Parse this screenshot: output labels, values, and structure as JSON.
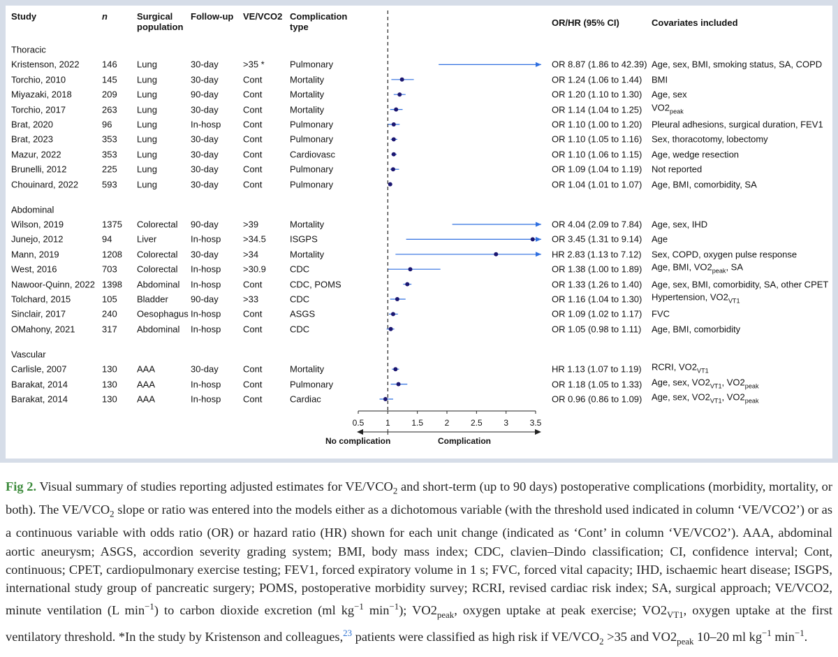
{
  "chart_data": {
    "type": "forest",
    "columns": {
      "study": "Study",
      "n": "n",
      "population": "Surgical population",
      "followup": "Follow-up",
      "ve_vco2": "VE/VCO2",
      "complication": "Complication type",
      "estimate": "OR/HR (95% CI)",
      "covariates": "Covariates included"
    },
    "groups": [
      {
        "name": "Thoracic",
        "rows": [
          {
            "study": "Kristenson, 2022",
            "n": 146,
            "population": "Lung",
            "followup": "30-day",
            "ve_vco2": ">35 *",
            "complication": "Pulmonary",
            "estimate": 8.87,
            "lower": 1.86,
            "upper": 42.39,
            "label": "OR 8.87 (1.86 to 42.39)",
            "covariates": "Age, sex, BMI, smoking status, SA, COPD"
          },
          {
            "study": "Torchio, 2010",
            "n": 145,
            "population": "Lung",
            "followup": "30-day",
            "ve_vco2": "Cont",
            "complication": "Mortality",
            "estimate": 1.24,
            "lower": 1.06,
            "upper": 1.44,
            "label": "OR 1.24 (1.06 to 1.44)",
            "covariates": "BMI"
          },
          {
            "study": "Miyazaki, 2018",
            "n": 209,
            "population": "Lung",
            "followup": "90-day",
            "ve_vco2": "Cont",
            "complication": "Mortality",
            "estimate": 1.2,
            "lower": 1.1,
            "upper": 1.3,
            "label": "OR 1.20 (1.10 to 1.30)",
            "covariates": "Age, sex"
          },
          {
            "study": "Torchio, 2017",
            "n": 263,
            "population": "Lung",
            "followup": "30-day",
            "ve_vco2": "Cont",
            "complication": "Mortality",
            "estimate": 1.14,
            "lower": 1.04,
            "upper": 1.25,
            "label": "OR 1.14 (1.04 to 1.25)",
            "covariates": [
              "VO2",
              {
                "sub": "peak"
              }
            ]
          },
          {
            "study": "Brat, 2020",
            "n": 96,
            "population": "Lung",
            "followup": "In-hosp",
            "ve_vco2": "Cont",
            "complication": "Pulmonary",
            "estimate": 1.1,
            "lower": 1.0,
            "upper": 1.2,
            "label": "OR 1.10 (1.00 to 1.20)",
            "covariates": "Pleural adhesions, surgical duration, FEV1"
          },
          {
            "study": "Brat, 2023",
            "n": 353,
            "population": "Lung",
            "followup": "30-day",
            "ve_vco2": "Cont",
            "complication": "Pulmonary",
            "estimate": 1.1,
            "lower": 1.05,
            "upper": 1.16,
            "label": "OR 1.10 (1.05 to 1.16)",
            "covariates": "Sex, thoracotomy, lobectomy"
          },
          {
            "study": "Mazur, 2022",
            "n": 353,
            "population": "Lung",
            "followup": "30-day",
            "ve_vco2": "Cont",
            "complication": "Cardiovasc",
            "estimate": 1.1,
            "lower": 1.06,
            "upper": 1.15,
            "label": "OR 1.10 (1.06 to 1.15)",
            "covariates": "Age, wedge resection"
          },
          {
            "study": "Brunelli, 2012",
            "n": 225,
            "population": "Lung",
            "followup": "30-day",
            "ve_vco2": "Cont",
            "complication": "Pulmonary",
            "estimate": 1.09,
            "lower": 1.04,
            "upper": 1.19,
            "label": "OR 1.09 (1.04 to 1.19)",
            "covariates": "Not reported"
          },
          {
            "study": "Chouinard, 2022",
            "n": 593,
            "population": "Lung",
            "followup": "30-day",
            "ve_vco2": "Cont",
            "complication": "Pulmonary",
            "estimate": 1.04,
            "lower": 1.01,
            "upper": 1.07,
            "label": "OR 1.04 (1.01 to 1.07)",
            "covariates": "Age, BMI, comorbidity, SA"
          }
        ]
      },
      {
        "name": "Abdominal",
        "rows": [
          {
            "study": "Wilson, 2019",
            "n": 1375,
            "population": "Colorectal",
            "followup": "90-day",
            "ve_vco2": ">39",
            "complication": "Mortality",
            "estimate": 4.04,
            "lower": 2.09,
            "upper": 7.84,
            "label": "OR 4.04 (2.09 to 7.84)",
            "covariates": "Age, sex, IHD"
          },
          {
            "study": "Junejo, 2012",
            "n": 94,
            "population": "Liver",
            "followup": "In-hosp",
            "ve_vco2": ">34.5",
            "complication": "ISGPS",
            "estimate": 3.45,
            "lower": 1.31,
            "upper": 9.14,
            "label": "OR 3.45 (1.31 to 9.14)",
            "covariates": "Age"
          },
          {
            "study": "Mann, 2019",
            "n": 1208,
            "population": "Colorectal",
            "followup": "30-day",
            "ve_vco2": ">34",
            "complication": "Mortality",
            "estimate": 2.83,
            "lower": 1.13,
            "upper": 7.12,
            "label": "HR 2.83 (1.13 to 7.12)",
            "covariates": "Sex, COPD, oxygen pulse response"
          },
          {
            "study": "West, 2016",
            "n": 703,
            "population": "Colorectal",
            "followup": "In-hosp",
            "ve_vco2": ">30.9",
            "complication": "CDC",
            "estimate": 1.38,
            "lower": 1.0,
            "upper": 1.89,
            "label": "OR 1.38 (1.00 to 1.89)",
            "covariates": [
              "Age, BMI, VO2",
              {
                "sub": "peak"
              },
              ", SA"
            ]
          },
          {
            "study": "Nawoor-Quinn, 2022",
            "n": 1398,
            "population": "Abdominal",
            "followup": "In-hosp",
            "ve_vco2": "Cont",
            "complication": "CDC, POMS",
            "estimate": 1.33,
            "lower": 1.26,
            "upper": 1.4,
            "label": "OR 1.33 (1.26 to 1.40)",
            "covariates": "Age, sex, BMI, comorbidity, SA, other CPET"
          },
          {
            "study": "Tolchard, 2015",
            "n": 105,
            "population": "Bladder",
            "followup": "90-day",
            "ve_vco2": ">33",
            "complication": "CDC",
            "estimate": 1.16,
            "lower": 1.04,
            "upper": 1.3,
            "label": "OR 1.16 (1.04 to 1.30)",
            "covariates": [
              "Hypertension, VO2",
              {
                "sub": "VT1"
              }
            ]
          },
          {
            "study": "Sinclair, 2017",
            "n": 240,
            "population": "Oesophagus",
            "followup": "In-hosp",
            "ve_vco2": "Cont",
            "complication": "ASGS",
            "estimate": 1.09,
            "lower": 1.02,
            "upper": 1.17,
            "label": "OR 1.09 (1.02 to 1.17)",
            "covariates": "FVC"
          },
          {
            "study": "OMahony, 2021",
            "n": 317,
            "population": "Abdominal",
            "followup": "In-hosp",
            "ve_vco2": "Cont",
            "complication": "CDC",
            "estimate": 1.05,
            "lower": 0.98,
            "upper": 1.11,
            "label": "OR 1.05 (0.98 to 1.11)",
            "covariates": "Age, BMI, comorbidity"
          }
        ]
      },
      {
        "name": "Vascular",
        "rows": [
          {
            "study": "Carlisle, 2007",
            "n": 130,
            "population": "AAA",
            "followup": "30-day",
            "ve_vco2": "Cont",
            "complication": "Mortality",
            "estimate": 1.13,
            "lower": 1.07,
            "upper": 1.19,
            "label": "HR 1.13 (1.07 to 1.19)",
            "covariates": [
              "RCRI, VO2",
              {
                "sub": "VT1"
              }
            ]
          },
          {
            "study": "Barakat, 2014",
            "n": 130,
            "population": "AAA",
            "followup": "In-hosp",
            "ve_vco2": "Cont",
            "complication": "Pulmonary",
            "estimate": 1.18,
            "lower": 1.05,
            "upper": 1.33,
            "label": "OR 1.18 (1.05 to 1.33)",
            "covariates": [
              "Age, sex, VO2",
              {
                "sub": "VT1"
              },
              ", VO2",
              {
                "sub": "peak"
              }
            ]
          },
          {
            "study": "Barakat, 2014",
            "n": 130,
            "population": "AAA",
            "followup": "In-hosp",
            "ve_vco2": "Cont",
            "complication": "Cardiac",
            "estimate": 0.96,
            "lower": 0.86,
            "upper": 1.09,
            "label": "OR 0.96 (0.86 to 1.09)",
            "covariates": [
              "Age, sex, VO2",
              {
                "sub": "VT1"
              },
              ", VO2",
              {
                "sub": "peak"
              }
            ]
          }
        ]
      }
    ],
    "xlim": [
      0.5,
      3.5
    ],
    "xticks": [
      0.5,
      1,
      1.5,
      2,
      2.5,
      3,
      3.5
    ],
    "reference_line": 1,
    "direction_labels": {
      "left": "No complication",
      "right": "Complication"
    },
    "point_color": "#1b1670",
    "line_color": "#2f6fe0"
  },
  "caption": {
    "label": "Fig 2.",
    "runs": [
      " Visual summary of studies reporting adjusted estimates for VE/VCO",
      {
        "sub": "2"
      },
      " and short-term (up to 90 days) postoperative complications (morbidity, mortality, or both). The VE/VCO",
      {
        "sub": "2"
      },
      " slope or ratio was entered into the models either as a dichotomous variable (with the threshold used indicated in column ‘VE/VCO2’) or as a continuous variable with odds ratio (OR) or hazard ratio (HR) shown for each unit change (indicated as ‘Cont’ in column ‘VE/VCO2’). AAA, abdominal aortic aneurysm; ASGS, accordion severity grading system; BMI, body mass index; CDC, clavien–Dindo classification; CI, confidence interval; Cont, continuous; CPET, cardiopulmonary exercise testing; FEV1, forced expiratory volume in 1 s; FVC, forced vital capacity; IHD, ischaemic heart disease; ISGPS, international study group of pancreatic surgery; POMS, postoperative morbidity survey; RCRI, revised cardiac risk index; SA, surgical approach; VE/VCO2, minute ventilation (L min",
      {
        "sup": "−1"
      },
      ") to carbon dioxide excretion (ml kg",
      {
        "sup": "−1"
      },
      " min",
      {
        "sup": "−1"
      },
      "); VO2",
      {
        "sub": "peak"
      },
      ", oxygen uptake at peak exercise; VO2",
      {
        "sub": "VT1"
      },
      ", oxygen uptake at the first ventilatory threshold. *In the study by Kristenson and colleagues,",
      {
        "ref": "23"
      },
      " patients were classified as high risk if VE/VCO",
      {
        "sub": "2"
      },
      " >35 and VO2",
      {
        "sub": "peak"
      },
      " 10–20 ml kg",
      {
        "sup": "−1"
      },
      " min",
      {
        "sup": "−1"
      },
      "."
    ]
  }
}
